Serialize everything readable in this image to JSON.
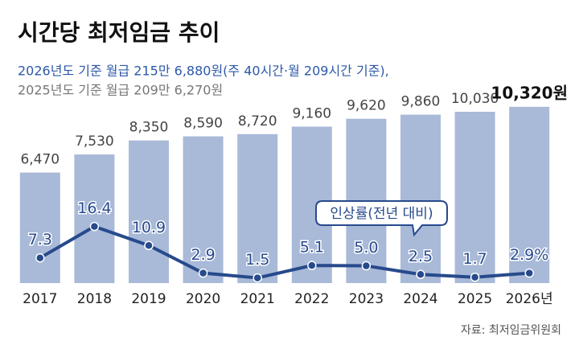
{
  "chart_data": {
    "type": "bar_line",
    "title": "시간당 최저임금 추이",
    "subtitle": [
      "2026년도 기준 월급 215만 6,880원(주 40시간·월 209시간 기준),",
      "2025년도 기준 월급 209만 6,270원"
    ],
    "categories": [
      "2017",
      "2018",
      "2019",
      "2020",
      "2021",
      "2022",
      "2023",
      "2024",
      "2025",
      "2026년"
    ],
    "series": [
      {
        "name": "시간당 최저임금",
        "type": "bar",
        "color": "#a9b9d8",
        "values": [
          6470,
          7530,
          8350,
          8590,
          8720,
          9160,
          9620,
          9860,
          10030,
          10320
        ],
        "value_labels": [
          "6,470",
          "7,530",
          "8,350",
          "8,590",
          "8,720",
          "9,160",
          "9,620",
          "9,860",
          "10,030",
          "10,320원"
        ]
      },
      {
        "name": "인상률(전년 대비)",
        "type": "line",
        "axis": "y2",
        "color": "#274a8c",
        "values": [
          7.3,
          16.4,
          10.9,
          2.9,
          1.5,
          5.1,
          5.0,
          2.5,
          1.7,
          2.9
        ],
        "value_labels": [
          "7.3",
          "16.4",
          "10.9",
          "2.9",
          "1.5",
          "5.1",
          "5.0",
          "2.5",
          "1.7",
          "2.9%"
        ]
      }
    ],
    "ylim": [
      0,
      10500
    ],
    "y2lim": [
      0,
      52
    ],
    "source": "자료: 최저임금위원회"
  }
}
